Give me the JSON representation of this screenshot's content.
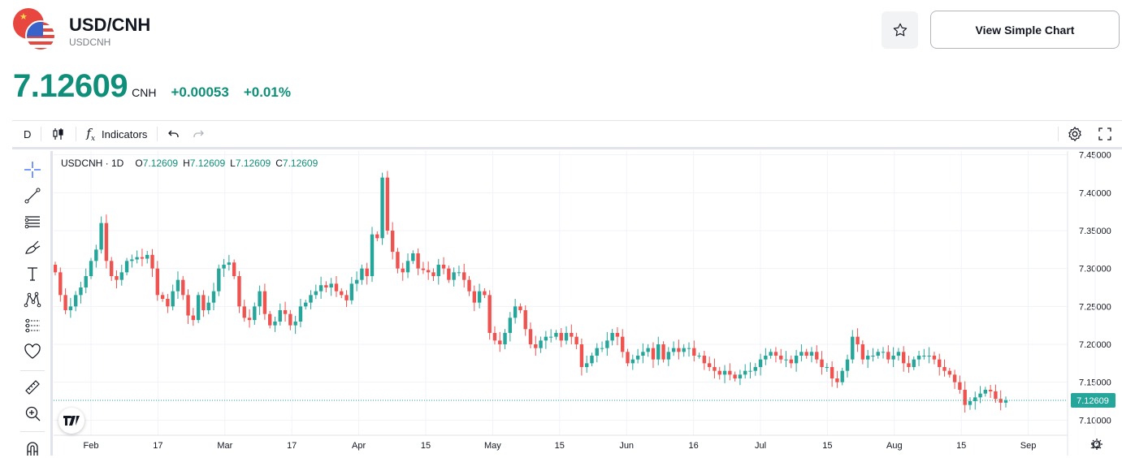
{
  "header": {
    "title": "USD/CNH",
    "subtitle": "USDCNH",
    "price": "7.12609",
    "currency": "CNH",
    "change": "+0.00053",
    "change_pct": "+0.01%",
    "view_simple_label": "View Simple Chart",
    "favorite_icon": "star-icon"
  },
  "toolbar": {
    "interval": "D",
    "indicators_label": "Indicators",
    "fx_label": "f",
    "fx_sub": "x"
  },
  "legend": {
    "symbol": "USDCNH · 1D",
    "o_label": "O",
    "o": "7.12609",
    "h_label": "H",
    "h": "7.12609",
    "l_label": "L",
    "l": "7.12609",
    "c_label": "C",
    "c": "7.12609"
  },
  "colors": {
    "up": "#26a69a",
    "down": "#ef5350",
    "accent": "#0f8f7a"
  },
  "chart_data": {
    "type": "candlestick",
    "ylim": [
      7.08,
      7.455
    ],
    "y_ticks": [
      "7.45000",
      "7.40000",
      "7.35000",
      "7.30000",
      "7.25000",
      "7.20000",
      "7.15000",
      "7.10000"
    ],
    "x_ticks": [
      "Feb",
      "17",
      "Mar",
      "17",
      "Apr",
      "15",
      "May",
      "15",
      "Jun",
      "16",
      "Jul",
      "15",
      "Aug",
      "15",
      "Sep",
      "12"
    ],
    "last_price": "7.12609",
    "last_value": 7.12609,
    "closes": [
      7.295,
      7.265,
      7.245,
      7.25,
      7.265,
      7.275,
      7.29,
      7.31,
      7.325,
      7.36,
      7.31,
      7.29,
      7.285,
      7.295,
      7.31,
      7.312,
      7.315,
      7.313,
      7.318,
      7.3,
      7.265,
      7.26,
      7.25,
      7.27,
      7.285,
      7.265,
      7.238,
      7.232,
      7.265,
      7.245,
      7.255,
      7.27,
      7.3,
      7.305,
      7.308,
      7.29,
      7.25,
      7.235,
      7.232,
      7.25,
      7.27,
      7.24,
      7.225,
      7.23,
      7.245,
      7.24,
      7.225,
      7.23,
      7.25,
      7.255,
      7.265,
      7.27,
      7.278,
      7.275,
      7.28,
      7.27,
      7.265,
      7.258,
      7.28,
      7.285,
      7.3,
      7.29,
      7.345,
      7.34,
      7.42,
      7.35,
      7.322,
      7.3,
      7.295,
      7.31,
      7.32,
      7.3,
      7.298,
      7.295,
      7.29,
      7.305,
      7.3,
      7.285,
      7.295,
      7.295,
      7.285,
      7.27,
      7.255,
      7.27,
      7.265,
      7.215,
      7.205,
      7.2,
      7.215,
      7.235,
      7.25,
      7.245,
      7.22,
      7.2,
      7.195,
      7.205,
      7.21,
      7.21,
      7.215,
      7.205,
      7.215,
      7.21,
      7.2,
      7.17,
      7.175,
      7.185,
      7.195,
      7.195,
      7.205,
      7.215,
      7.21,
      7.19,
      7.175,
      7.18,
      7.185,
      7.19,
      7.195,
      7.18,
      7.2,
      7.18,
      7.19,
      7.195,
      7.19,
      7.195,
      7.195,
      7.185,
      7.185,
      7.175,
      7.17,
      7.165,
      7.16,
      7.165,
      7.16,
      7.155,
      7.16,
      7.165,
      7.165,
      7.17,
      7.18,
      7.185,
      7.19,
      7.185,
      7.18,
      7.18,
      7.175,
      7.185,
      7.19,
      7.185,
      7.19,
      7.18,
      7.17,
      7.17,
      7.155,
      7.15,
      7.165,
      7.18,
      7.21,
      7.2,
      7.18,
      7.185,
      7.185,
      7.19,
      7.19,
      7.18,
      7.185,
      7.19,
      7.175,
      7.17,
      7.18,
      7.185,
      7.185,
      7.185,
      7.18,
      7.17,
      7.165,
      7.16,
      7.15,
      7.14,
      7.12,
      7.125,
      7.13,
      7.135,
      7.14,
      7.138,
      7.128,
      7.123,
      7.126
    ],
    "series_name": "USDCNH"
  }
}
